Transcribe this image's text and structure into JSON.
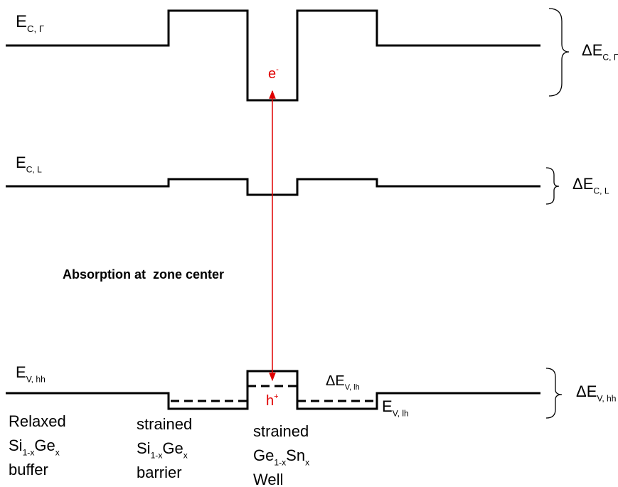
{
  "bands": {
    "ec_gamma": [
      {
        "text": "E"
      },
      {
        "sub": "C, Γ"
      }
    ],
    "ec_l": [
      {
        "text": "E"
      },
      {
        "sub": "C, L"
      }
    ],
    "ev_hh": [
      {
        "text": "E"
      },
      {
        "sub": "V, hh"
      }
    ],
    "ev_lh": [
      {
        "text": "E"
      },
      {
        "sub": "V, lh"
      }
    ]
  },
  "offsets": {
    "dec_gamma": [
      {
        "text": "ΔE"
      },
      {
        "sub": "C, Γ"
      }
    ],
    "dec_l": [
      {
        "text": "ΔE"
      },
      {
        "sub": "C, L"
      }
    ],
    "dev_hh": [
      {
        "text": "ΔE"
      },
      {
        "sub": "V, hh"
      }
    ],
    "dev_lh": [
      {
        "text": "ΔE"
      },
      {
        "sub": "V, lh"
      }
    ]
  },
  "carriers": {
    "electron": [
      {
        "text": "e"
      },
      {
        "sup": "-"
      }
    ],
    "hole": [
      {
        "text": "h"
      },
      {
        "sup": "+"
      }
    ]
  },
  "annotation": "Absorption at  zone center",
  "layers": [
    [
      [
        {
          "text": "Relaxed"
        }
      ],
      [
        {
          "text": "Si"
        },
        {
          "sub": "1-x"
        },
        {
          "text": "Ge"
        },
        {
          "sub": "x"
        }
      ],
      [
        {
          "text": "buffer"
        }
      ]
    ],
    [
      [
        {
          "text": "strained"
        }
      ],
      [
        {
          "text": "Si"
        },
        {
          "sub": "1-x"
        },
        {
          "text": "Ge"
        },
        {
          "sub": "x"
        }
      ],
      [
        {
          "text": "barrier"
        }
      ]
    ],
    [
      [
        {
          "text": "strained"
        }
      ],
      [
        {
          "text": "Ge"
        },
        {
          "sub": "1-x"
        },
        {
          "text": "Sn"
        },
        {
          "sub": "x"
        }
      ],
      [
        {
          "text": "Well"
        }
      ]
    ]
  ]
}
